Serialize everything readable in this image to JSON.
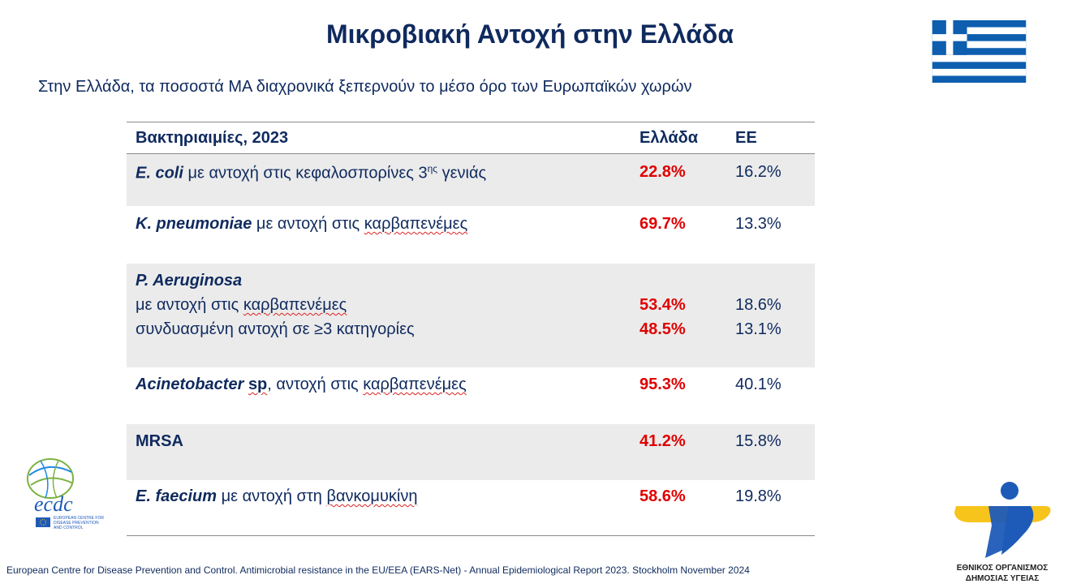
{
  "title": "Μικροβιακή Αντοχή στην Ελλάδα",
  "subtitle": "Στην Ελλάδα, τα ποσοστά ΜΑ διαχρονικά ξεπερνούν το μέσο όρο των Ευρωπαϊκών χωρών",
  "table": {
    "headers": {
      "label": "Βακτηριαιμίες, 2023",
      "greece": "Ελλάδα",
      "eu": "ΕΕ"
    },
    "rows": {
      "ecoli": {
        "name": "E. coli",
        "rest": " με αντοχή στις κεφαλοσπορίνες 3",
        "sup": "ης",
        "tail": " γενιάς",
        "greece": "22.8%",
        "eu": "16.2%"
      },
      "kpn": {
        "name": "K. pneumoniae",
        "rest_a": " με αντοχή στις ",
        "rest_b": "καρβαπενέμες",
        "greece": "69.7%",
        "eu": "13.3%"
      },
      "pae": {
        "name": "P. Aeruginosa",
        "line1_a": "με αντοχή στις ",
        "line1_b": "καρβαπενέμες",
        "greece1": "53.4%",
        "eu1": "18.6%",
        "line2": "συνδυασμένη αντοχή σε ≥3 κατηγορίες",
        "greece2": "48.5%",
        "eu2": "13.1%"
      },
      "acin": {
        "name_a": "Acinetobacter ",
        "name_b": "sp",
        "rest_a": ", αντοχή στις ",
        "rest_b": "καρβαπενέμες",
        "greece": "95.3%",
        "eu": "40.1%"
      },
      "mrsa": {
        "name": "MRSA",
        "greece": "41.2%",
        "eu": "15.8%"
      },
      "efae": {
        "name": "E. faecium",
        "rest_a": " με αντοχή στη ",
        "rest_b": "βανκομυκίνη",
        "greece": "58.6%",
        "eu": "19.8%"
      }
    }
  },
  "citation": "European Centre for Disease Prevention and Control. Antimicrobial resistance in the EU/EEA (EARS-Net) - Annual Epidemiological Report 2023. Stockholm November 2024",
  "ecdc_logo": {
    "mark": "ecdc",
    "lines": [
      "EUROPEAN CENTRE FOR",
      "DISEASE PREVENTION",
      "AND CONTROL"
    ]
  },
  "eody_logo": {
    "line1": "ΕΘΝΙΚΟΣ ΟΡΓΑΝΙΣΜΟΣ",
    "line2": "ΔΗΜΟΣΙΑΣ ΥΓΕΙΑΣ"
  },
  "colors": {
    "navy": "#0f2a5e",
    "red": "#e00000",
    "shade": "#ebebeb",
    "flag_blue": "#0d5eaf",
    "eody_yellow": "#f7c41b",
    "eody_blue": "#1e5bb8"
  }
}
